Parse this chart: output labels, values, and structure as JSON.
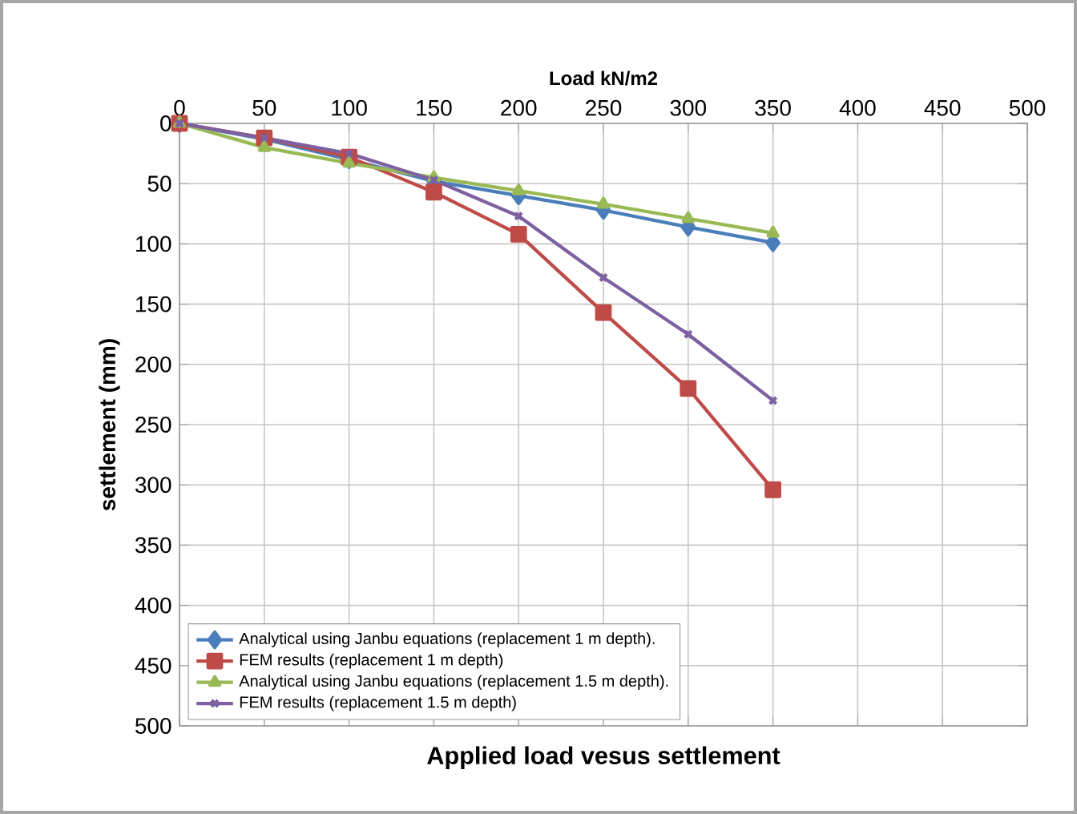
{
  "chart_data": {
    "type": "line",
    "title": "Applied load vesus settlement",
    "xlabel": "Load kN/m2",
    "ylabel": "settlement (mm)",
    "x": [
      0,
      50,
      100,
      150,
      200,
      250,
      300,
      350
    ],
    "series": [
      {
        "name": "Analytical using Janbu equations (replacement 1 m depth).",
        "color": "#4a7ebb",
        "marker": "diamond",
        "values": [
          0,
          13,
          30,
          48,
          60,
          72,
          86,
          99
        ]
      },
      {
        "name": "FEM results (replacement 1 m depth)",
        "color": "#be4b48",
        "marker": "square",
        "values": [
          0,
          12,
          28,
          57,
          92,
          157,
          220,
          304
        ]
      },
      {
        "name": "Analytical using Janbu equations (replacement 1.5 m depth).",
        "color": "#98b954",
        "marker": "triangle",
        "values": [
          0,
          20,
          33,
          45,
          56,
          67,
          79,
          91
        ]
      },
      {
        "name": "FEM results (replacement 1.5 m depth)",
        "color": "#7d60a0",
        "marker": "cross",
        "values": [
          0,
          12,
          25,
          47,
          77,
          128,
          175,
          230
        ]
      }
    ],
    "xlim": [
      0,
      500
    ],
    "xticks": [
      0,
      50,
      100,
      150,
      200,
      250,
      300,
      350,
      400,
      450,
      500
    ],
    "ylim": [
      500,
      0
    ],
    "yticks": [
      0,
      50,
      100,
      150,
      200,
      250,
      300,
      350,
      400,
      450,
      500
    ],
    "grid": true,
    "legend": "bottom left",
    "line_style": "solid"
  }
}
